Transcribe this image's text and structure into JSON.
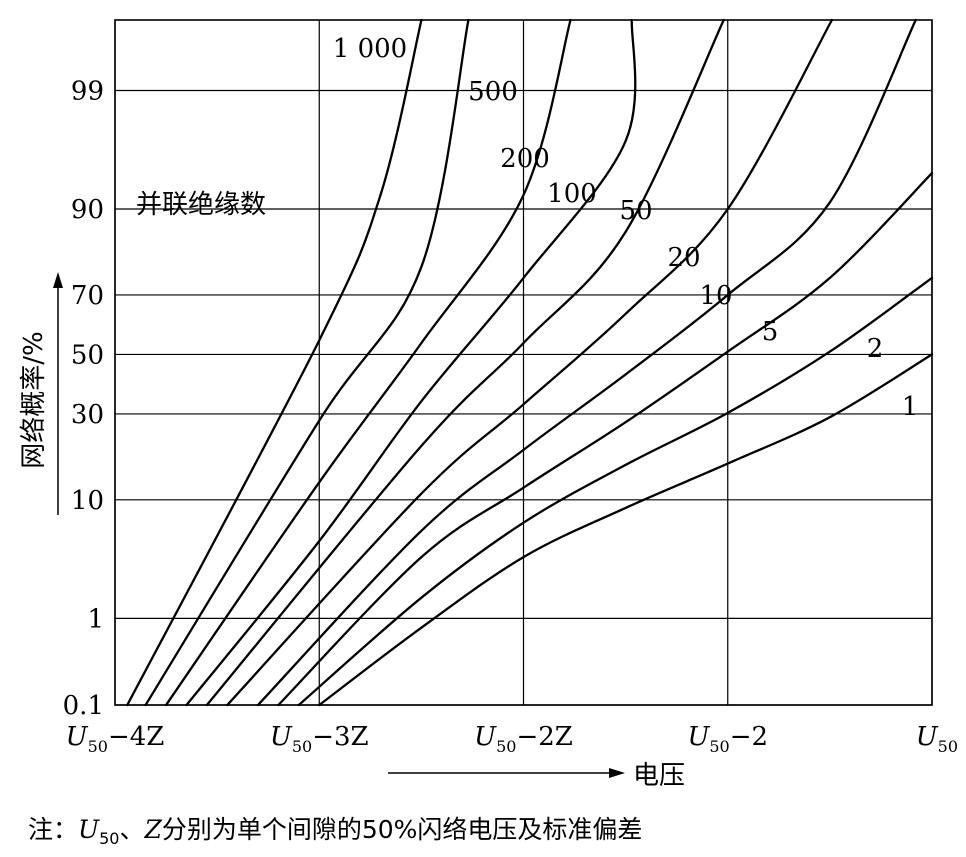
{
  "chart_data": {
    "type": "line",
    "title": "",
    "xlabel": "电压",
    "ylabel": "网络概率/%",
    "legend_title": "并联绝缘数",
    "x_tick_labels": [
      {
        "main": "U",
        "sub": "50",
        "rest": "−4Z",
        "x": -4
      },
      {
        "main": "U",
        "sub": "50",
        "rest": "−3Z",
        "x": -3
      },
      {
        "main": "U",
        "sub": "50",
        "rest": "−2Z",
        "x": -2
      },
      {
        "main": "U",
        "sub": "50",
        "rest": "−2",
        "x": -1
      },
      {
        "main": "U",
        "sub": "50",
        "rest": "",
        "x": 0
      }
    ],
    "xlim": [
      -4,
      0
    ],
    "y_scale": "probability",
    "y_ticks": [
      0.1,
      1,
      10,
      30,
      50,
      70,
      90,
      99
    ],
    "ylim": [
      0.1,
      99.84
    ],
    "grid": true,
    "series": [
      {
        "name": "1",
        "points": [
          [
            -3.0,
            0.1
          ],
          [
            -2.5,
            0.8
          ],
          [
            -2.0,
            3.7
          ],
          [
            -1.5,
            8.8
          ],
          [
            -1.0,
            16.8
          ],
          [
            -0.5,
            29.0
          ],
          [
            0.0,
            50.0
          ]
        ]
      },
      {
        "name": "2",
        "points": [
          [
            -3.1,
            0.1
          ],
          [
            -2.5,
            1.6
          ],
          [
            -2.0,
            6.9
          ],
          [
            -1.5,
            16.5
          ],
          [
            -1.0,
            30.3
          ],
          [
            -0.5,
            51.0
          ],
          [
            0.0,
            75.0
          ]
        ]
      },
      {
        "name": "5",
        "points": [
          [
            -3.2,
            0.1
          ],
          [
            -2.5,
            3.7
          ],
          [
            -2.0,
            12.0
          ],
          [
            -1.5,
            27.5
          ],
          [
            -1.0,
            51.0
          ],
          [
            -0.5,
            75.0
          ],
          [
            0.0,
            94.5
          ]
        ]
      },
      {
        "name": "10",
        "points": [
          [
            -3.3,
            0.1
          ],
          [
            -2.5,
            6.0
          ],
          [
            -2.0,
            20.0
          ],
          [
            -1.5,
            43.0
          ],
          [
            -1.0,
            70.0
          ],
          [
            -0.5,
            91.0
          ],
          [
            -0.08,
            99.84
          ]
        ]
      },
      {
        "name": "20",
        "points": [
          [
            -3.45,
            0.1
          ],
          [
            -2.5,
            11.0
          ],
          [
            -2.0,
            33.0
          ],
          [
            -1.5,
            64.0
          ],
          [
            -1.0,
            90.0
          ],
          [
            -0.49,
            99.84
          ]
        ]
      },
      {
        "name": "50",
        "points": [
          [
            -3.55,
            0.1
          ],
          [
            -2.5,
            21.0
          ],
          [
            -2.0,
            54.0
          ],
          [
            -1.5,
            86.0
          ],
          [
            -1.02,
            99.84
          ]
        ]
      },
      {
        "name": "100",
        "points": [
          [
            -3.65,
            0.1
          ],
          [
            -3.0,
            5.0
          ],
          [
            -2.5,
            34.0
          ],
          [
            -2.0,
            75.0
          ],
          [
            -1.5,
            97.0
          ],
          [
            -1.47,
            99.84
          ]
        ]
      },
      {
        "name": "200",
        "points": [
          [
            -3.75,
            0.1
          ],
          [
            -3.0,
            13.0
          ],
          [
            -2.5,
            54.0
          ],
          [
            -2.0,
            92.0
          ],
          [
            -1.77,
            99.84
          ]
        ]
      },
      {
        "name": "500",
        "points": [
          [
            -3.85,
            0.1
          ],
          [
            -3.0,
            28.0
          ],
          [
            -2.5,
            78.0
          ],
          [
            -2.27,
            99.84
          ]
        ]
      },
      {
        "name": "1 000",
        "points": [
          [
            -3.94,
            0.1
          ],
          [
            -3.0,
            55.0
          ],
          [
            -2.7,
            92.0
          ],
          [
            -2.5,
            99.84
          ]
        ]
      }
    ]
  },
  "note": {
    "prefix": "注：",
    "u_main": "U",
    "u_sub": "50",
    "middle": "、",
    "z_letter": "Z",
    "suffix": "分别为单个间隙的50%闪络电压及标准偏差"
  }
}
